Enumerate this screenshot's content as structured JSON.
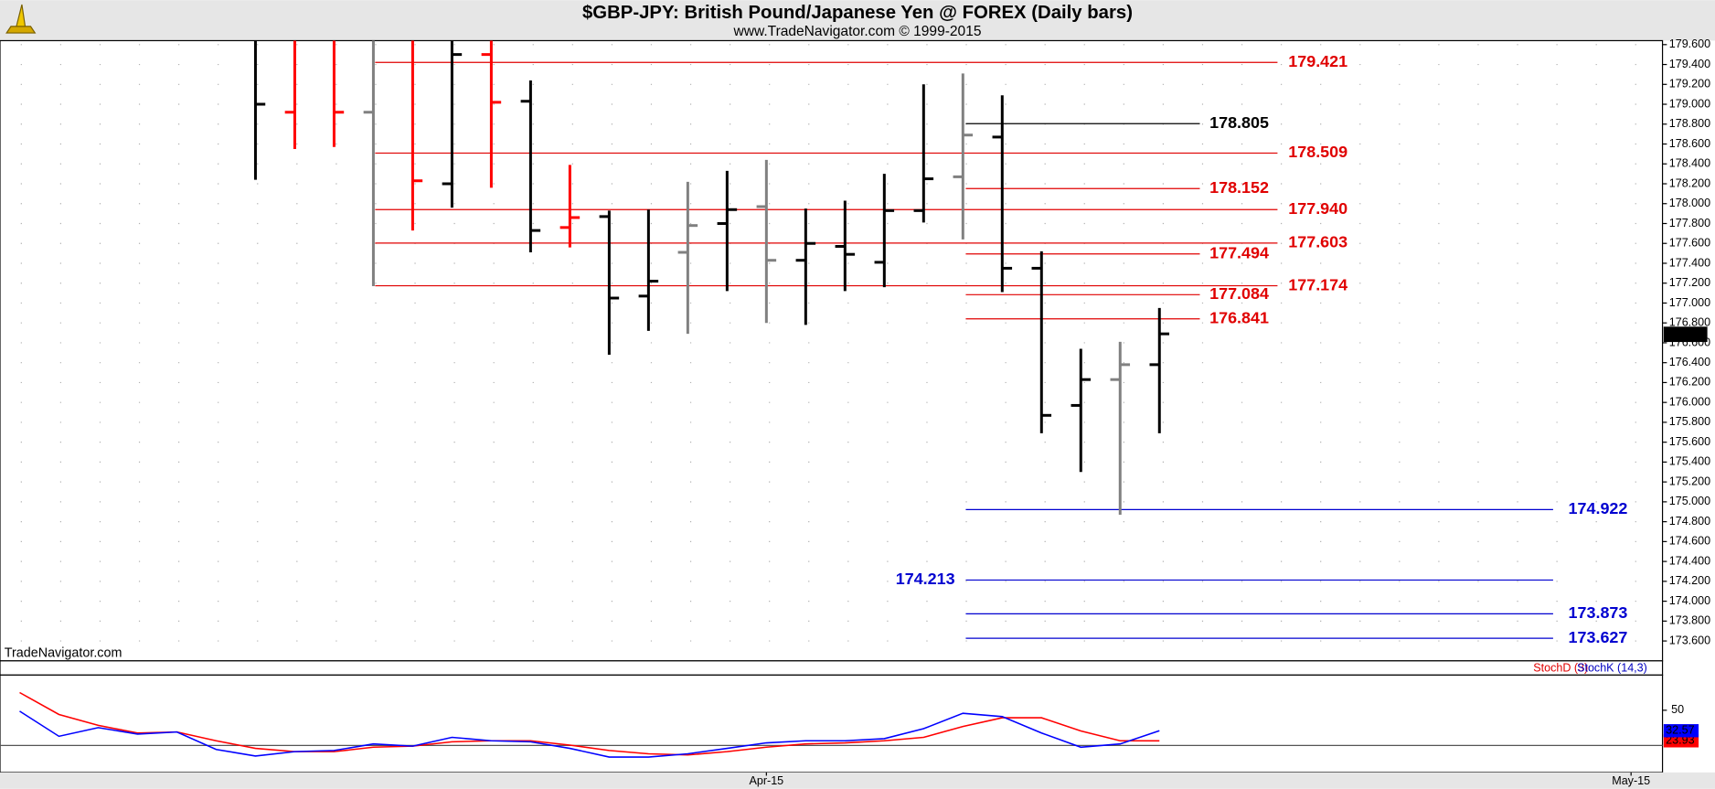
{
  "chart_data": [
    {
      "type": "ohlc",
      "title": "$GBP-JPY:  British Pound/Japanese Yen @ FOREX  (Daily bars)",
      "subtitle": "www.TradeNavigator.com © 1999-2015",
      "watermark": "TradeNavigator.com",
      "x": [
        0,
        1,
        2,
        3,
        4,
        5,
        6,
        7,
        8,
        9,
        10,
        11,
        12,
        13,
        14,
        15,
        16,
        17,
        18,
        19,
        20,
        21,
        22,
        23
      ],
      "open": [
        null,
        178.92,
        null,
        178.92,
        null,
        178.2,
        179.5,
        179.03,
        177.76,
        177.87,
        177.07,
        177.51,
        177.8,
        177.97,
        177.43,
        177.57,
        177.41,
        177.93,
        178.27,
        178.67,
        177.35,
        175.97,
        176.23,
        176.38
      ],
      "high": [
        null,
        null,
        null,
        null,
        null,
        null,
        null,
        179.24,
        178.39,
        177.93,
        177.94,
        178.22,
        178.33,
        178.44,
        177.95,
        178.03,
        178.3,
        179.2,
        179.31,
        179.09,
        177.52,
        176.54,
        176.61,
        176.95
      ],
      "low": [
        178.24,
        178.55,
        178.57,
        177.17,
        177.73,
        177.96,
        178.16,
        177.51,
        177.56,
        176.48,
        176.72,
        176.69,
        177.12,
        176.8,
        176.78,
        177.12,
        177.16,
        177.81,
        177.64,
        177.11,
        175.69,
        175.3,
        174.87,
        175.69
      ],
      "close": [
        179.0,
        null,
        178.92,
        null,
        178.23,
        179.5,
        179.02,
        177.73,
        177.86,
        177.05,
        177.22,
        177.78,
        177.94,
        177.43,
        177.6,
        177.49,
        177.93,
        178.25,
        178.69,
        177.35,
        175.87,
        176.23,
        176.38,
        176.69
      ],
      "colors": [
        "#000000",
        "#ff0000",
        "#ff0000",
        "#808080",
        "#ff0000",
        "#000000",
        "#ff0000",
        "#000000",
        "#ff0000",
        "#000000",
        "#000000",
        "#808080",
        "#000000",
        "#808080",
        "#000000",
        "#000000",
        "#000000",
        "#000000",
        "#808080",
        "#000000",
        "#000000",
        "#000000",
        "#808080",
        "#000000"
      ],
      "xlim": [
        -6.5,
        35.8
      ],
      "ylim": [
        173.4,
        179.64
      ],
      "yticks": [
        {
          "value": 173.6,
          "label": "173.600"
        },
        {
          "value": 173.8,
          "label": "173.800"
        },
        {
          "value": 174.0,
          "label": "174.000"
        },
        {
          "value": 174.2,
          "label": "174.200"
        },
        {
          "value": 174.4,
          "label": "174.400"
        },
        {
          "value": 174.6,
          "label": "174.600"
        },
        {
          "value": 174.8,
          "label": "174.800"
        },
        {
          "value": 175.0,
          "label": "175.000"
        },
        {
          "value": 175.2,
          "label": "175.200"
        },
        {
          "value": 175.4,
          "label": "175.400"
        },
        {
          "value": 175.6,
          "label": "175.600"
        },
        {
          "value": 175.8,
          "label": "175.800"
        },
        {
          "value": 176.0,
          "label": "176.000"
        },
        {
          "value": 176.2,
          "label": "176.200"
        },
        {
          "value": 176.4,
          "label": "176.400"
        },
        {
          "value": 176.6,
          "label": "176.600"
        },
        {
          "value": 176.8,
          "label": "176.800"
        },
        {
          "value": 177.0,
          "label": "177.000"
        },
        {
          "value": 177.2,
          "label": "177.200"
        },
        {
          "value": 177.4,
          "label": "177.400"
        },
        {
          "value": 177.6,
          "label": "177.600"
        },
        {
          "value": 177.8,
          "label": "177.800"
        },
        {
          "value": 178.0,
          "label": "178.000"
        },
        {
          "value": 178.2,
          "label": "178.200"
        },
        {
          "value": 178.4,
          "label": "178.400"
        },
        {
          "value": 178.6,
          "label": "178.600"
        },
        {
          "value": 178.8,
          "label": "178.800"
        },
        {
          "value": 179.0,
          "label": "179.000"
        },
        {
          "value": 179.2,
          "label": "179.200"
        },
        {
          "value": 179.4,
          "label": "179.400"
        },
        {
          "value": 179.6,
          "label": "179.600"
        }
      ],
      "grid": true,
      "last_price": 176.685,
      "levels": [
        {
          "value": 179.421,
          "label": "179.421",
          "color": "#e00000"
        },
        {
          "value": 178.805,
          "label": "178.805",
          "color": "#000000"
        },
        {
          "value": 178.509,
          "label": "178.509",
          "color": "#e00000"
        },
        {
          "value": 178.152,
          "label": "178.152",
          "color": "#e00000"
        },
        {
          "value": 177.94,
          "label": "177.940",
          "color": "#e00000"
        },
        {
          "value": 177.603,
          "label": "177.603",
          "color": "#e00000"
        },
        {
          "value": 177.494,
          "label": "177.494",
          "color": "#e00000"
        },
        {
          "value": 177.174,
          "label": "177.174",
          "color": "#e00000"
        },
        {
          "value": 177.084,
          "label": "177.084",
          "color": "#e00000"
        },
        {
          "value": 176.841,
          "label": "176.841",
          "color": "#e00000"
        },
        {
          "value": 174.922,
          "label": "174.922",
          "color": "#0000d0"
        },
        {
          "value": 174.213,
          "label": "174.213",
          "color": "#0000d0"
        },
        {
          "value": 173.873,
          "label": "173.873",
          "color": "#0000d0"
        },
        {
          "value": 173.627,
          "label": "173.627",
          "color": "#0000d0"
        }
      ]
    },
    {
      "type": "line",
      "x": [
        -6,
        -5,
        -4,
        -3,
        -2,
        -1,
        0,
        1,
        2,
        3,
        4,
        5,
        6,
        7,
        8,
        9,
        10,
        11,
        12,
        13,
        14,
        15,
        16,
        17,
        18,
        19,
        20,
        21,
        22,
        23
      ],
      "series": [
        {
          "name": "StochD (3)",
          "color": "#ff0000",
          "values": [
            65.1,
            46.4,
            37.1,
            30.6,
            31.5,
            24,
            17.5,
            14.7,
            14.7,
            18.5,
            19.4,
            23.1,
            24,
            24,
            20.3,
            15.7,
            12.9,
            11.9,
            14.7,
            18.5,
            21.3,
            22.2,
            24,
            26.9,
            36.2,
            43.6,
            43.6,
            32.4,
            24,
            23.93
          ]
        },
        {
          "name": "StochK (14,3)",
          "color": "#0000ff",
          "values": [
            49.2,
            27.8,
            35.2,
            29.7,
            31.5,
            16.6,
            11.0,
            14.7,
            15.7,
            21.3,
            19.4,
            26.9,
            24,
            23.1,
            17.5,
            10.1,
            10.1,
            12.9,
            17.5,
            22.2,
            24,
            24,
            25.8,
            34.3,
            47.4,
            44.6,
            30.6,
            18.5,
            21.3,
            32.57
          ]
        }
      ],
      "xlim": [
        -6.5,
        35.8
      ],
      "ylim": [
        -3,
        80
      ],
      "yticks": [
        50
      ],
      "reference_lines": [
        20
      ],
      "xticks": [
        {
          "value": 13,
          "label": "Apr-15"
        },
        {
          "value": 35,
          "label": "May-15"
        }
      ]
    }
  ]
}
